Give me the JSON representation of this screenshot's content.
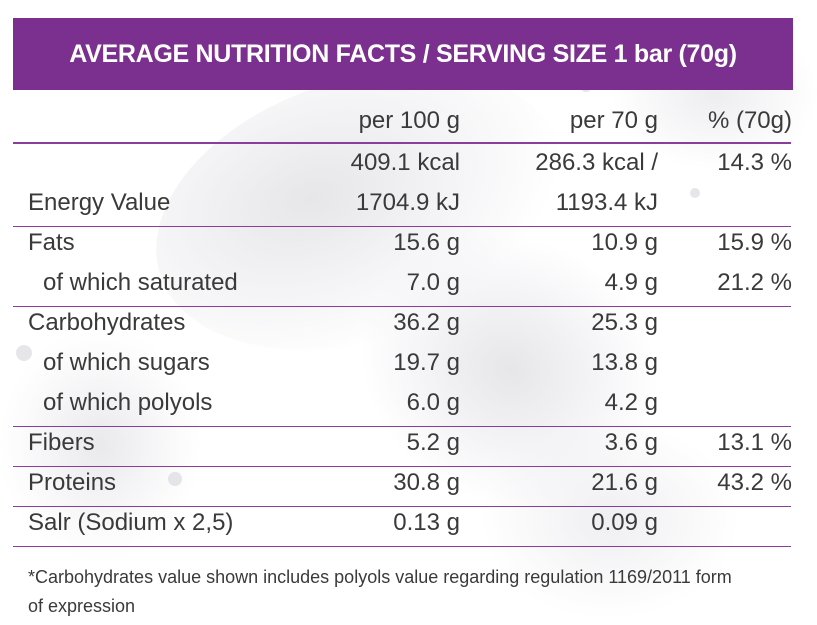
{
  "title": "AVERAGE NUTRITION FACTS / SERVING SIZE 1 bar (70g)",
  "columns": [
    "per 100 g",
    "per 70 g",
    "% (70g)"
  ],
  "energy": {
    "label": "Energy Value",
    "per100_kcal": "409.1 kcal",
    "per100_kj": "1704.9 kJ",
    "per70_kcal": "286.3 kcal /",
    "per70_kj": "1193.4 kJ",
    "percent": "14.3 %"
  },
  "rows": [
    {
      "label": "Fats",
      "per100": "15.6 g",
      "per70": "10.9 g",
      "percent": "15.9 %"
    },
    {
      "label": "of which saturated",
      "per100": "7.0 g",
      "per70": "4.9 g",
      "percent": "21.2 %"
    },
    {
      "label": "Carbohydrates",
      "per100": "36.2 g",
      "per70": "25.3 g",
      "percent": ""
    },
    {
      "label": "of which sugars",
      "per100": "19.7 g",
      "per70": "13.8 g",
      "percent": ""
    },
    {
      "label": "of which polyols",
      "per100": "6.0 g",
      "per70": "4.2 g",
      "percent": ""
    },
    {
      "label": "Fibers",
      "per100": "5.2 g",
      "per70": "3.6 g",
      "percent": "13.1 %"
    },
    {
      "label": "Proteins",
      "per100": "30.8 g",
      "per70": "21.6 g",
      "percent": "43.2 %"
    },
    {
      "label": "Salr (Sodium x 2,5)",
      "per100": "0.13 g",
      "per70": "0.09 g",
      "percent": ""
    }
  ],
  "footnote": "*Carbohydrates value shown includes polyols value regarding regulation 1169/2011 form of expression",
  "colors": {
    "header_bg": "#7b2f8e",
    "rule": "#8a3e9c",
    "text": "#3a3a3a"
  }
}
